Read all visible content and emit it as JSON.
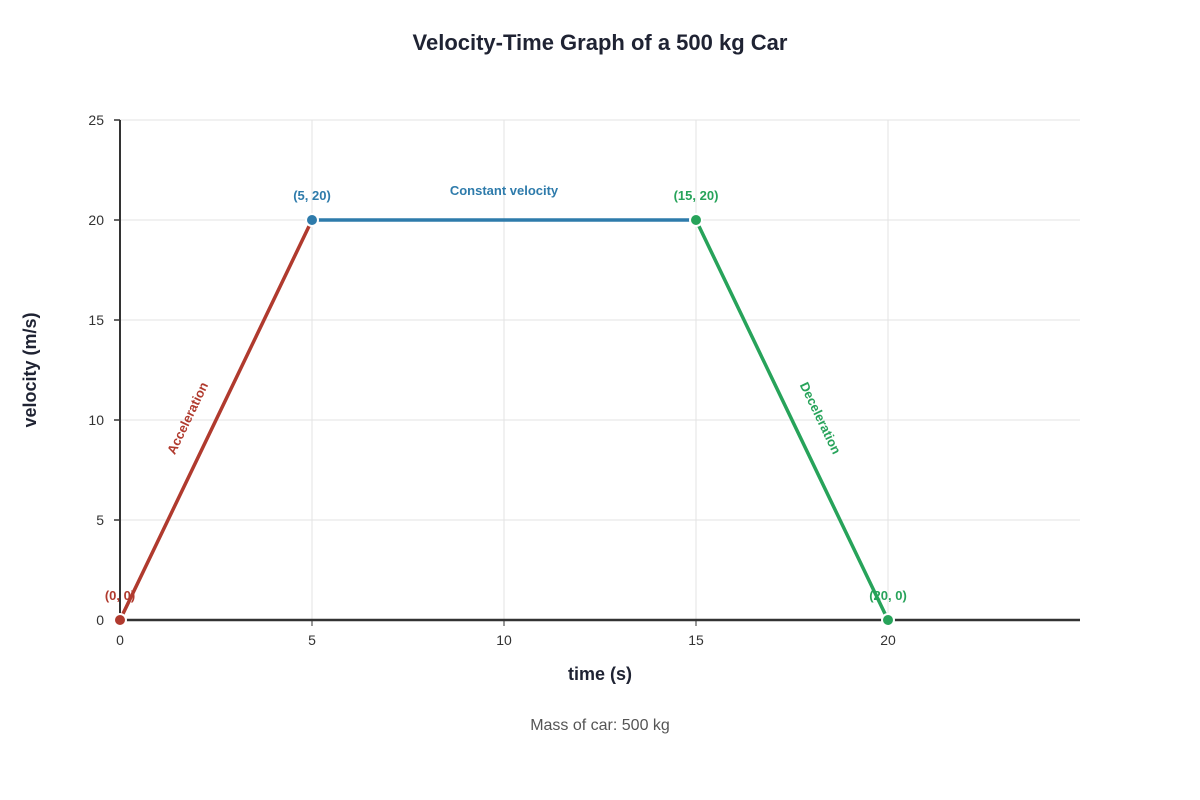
{
  "chart_data": {
    "type": "line",
    "title": "Velocity-Time Graph of a 500 kg Car",
    "xlabel": "time (s)",
    "ylabel": "velocity (m/s)",
    "xlim": [
      0,
      25
    ],
    "ylim": [
      0,
      25
    ],
    "x_ticks": [
      "0",
      "5",
      "10",
      "15",
      "20"
    ],
    "y_ticks": [
      "0",
      "5",
      "10",
      "15",
      "20",
      "25"
    ],
    "grid": true,
    "caption": "Mass of car: 500 kg",
    "segments": [
      {
        "name": "Acceleration",
        "color": "#b03a2e",
        "x": [
          0,
          5
        ],
        "y": [
          0,
          20
        ]
      },
      {
        "name": "Constant velocity",
        "color": "#2e7bab",
        "x": [
          5,
          15
        ],
        "y": [
          20,
          20
        ]
      },
      {
        "name": "Deceleration",
        "color": "#27a35a",
        "x": [
          15,
          20
        ],
        "y": [
          20,
          0
        ]
      }
    ],
    "points": [
      {
        "x": 0,
        "y": 0,
        "label": "(0, 0)",
        "color": "#b03a2e"
      },
      {
        "x": 5,
        "y": 20,
        "label": "(5, 20)",
        "color": "#2e7bab"
      },
      {
        "x": 15,
        "y": 20,
        "label": "(15, 20)",
        "color": "#27a35a"
      },
      {
        "x": 20,
        "y": 0,
        "label": "(20, 0)",
        "color": "#27a35a"
      }
    ]
  }
}
